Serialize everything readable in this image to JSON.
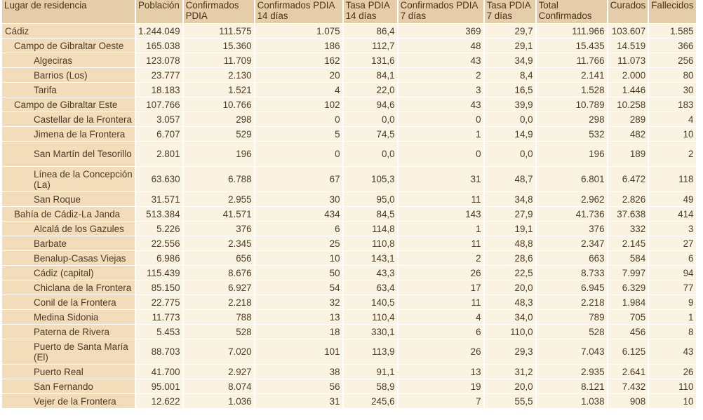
{
  "headers": [
    "Lugar de residencia",
    "Población",
    "Confirmados PDIA",
    "Confirmados PDIA 14 días",
    "Tasa PDIA 14 días",
    "Confirmados PDIA 7 días",
    "Tasa PDIA 7 días",
    "Total Confirmados",
    "Curados",
    "Fallecidos"
  ],
  "rows": [
    {
      "level": 0,
      "cells": [
        "Cádiz",
        "1.244.049",
        "111.575",
        "1.075",
        "86,4",
        "369",
        "29,7",
        "111.966",
        "103.607",
        "1.585"
      ]
    },
    {
      "level": 1,
      "cells": [
        "Campo de Gibraltar Oeste",
        "165.038",
        "15.360",
        "186",
        "112,7",
        "48",
        "29,1",
        "15.435",
        "14.519",
        "366"
      ]
    },
    {
      "level": 2,
      "cells": [
        "Algeciras",
        "123.078",
        "11.709",
        "162",
        "131,6",
        "43",
        "34,9",
        "11.766",
        "11.073",
        "256"
      ]
    },
    {
      "level": 2,
      "cells": [
        "Barrios (Los)",
        "23.777",
        "2.130",
        "20",
        "84,1",
        "2",
        "8,4",
        "2.141",
        "2.000",
        "80"
      ]
    },
    {
      "level": 2,
      "cells": [
        "Tarifa",
        "18.183",
        "1.521",
        "4",
        "22,0",
        "3",
        "16,5",
        "1.528",
        "1.446",
        "30"
      ]
    },
    {
      "level": 1,
      "cells": [
        "Campo de Gibraltar Este",
        "107.766",
        "10.766",
        "102",
        "94,6",
        "43",
        "39,9",
        "10.789",
        "10.258",
        "183"
      ]
    },
    {
      "level": 2,
      "cells": [
        "Castellar de la Frontera",
        "3.057",
        "298",
        "0",
        "0,0",
        "0",
        "0,0",
        "298",
        "289",
        "4"
      ]
    },
    {
      "level": 2,
      "cells": [
        "Jimena de la Frontera",
        "6.707",
        "529",
        "5",
        "74,5",
        "1",
        "14,9",
        "532",
        "482",
        "10"
      ]
    },
    {
      "level": 2,
      "tall": true,
      "cells": [
        "San Martín del Tesorillo",
        "2.801",
        "196",
        "0",
        "0,0",
        "0",
        "0,0",
        "196",
        "189",
        "2"
      ]
    },
    {
      "level": 2,
      "tall": true,
      "cells": [
        "Línea de la Concepción (La)",
        "63.630",
        "6.788",
        "67",
        "105,3",
        "31",
        "48,7",
        "6.801",
        "6.472",
        "118"
      ]
    },
    {
      "level": 2,
      "cells": [
        "San Roque",
        "31.571",
        "2.955",
        "30",
        "95,0",
        "11",
        "34,8",
        "2.962",
        "2.826",
        "49"
      ]
    },
    {
      "level": 1,
      "cells": [
        "Bahía de Cádiz-La Janda",
        "513.384",
        "41.571",
        "434",
        "84,5",
        "143",
        "27,9",
        "41.736",
        "37.638",
        "414"
      ]
    },
    {
      "level": 2,
      "cells": [
        "Alcalá de los Gazules",
        "5.226",
        "376",
        "6",
        "114,8",
        "1",
        "19,1",
        "376",
        "332",
        "3"
      ]
    },
    {
      "level": 2,
      "cells": [
        "Barbate",
        "22.556",
        "2.345",
        "25",
        "110,8",
        "11",
        "48,8",
        "2.347",
        "2.145",
        "27"
      ]
    },
    {
      "level": 2,
      "cells": [
        "Benalup-Casas Viejas",
        "6.986",
        "656",
        "10",
        "143,1",
        "2",
        "28,6",
        "663",
        "584",
        "6"
      ]
    },
    {
      "level": 2,
      "cells": [
        "Cádiz (capital)",
        "115.439",
        "8.676",
        "50",
        "43,3",
        "26",
        "22,5",
        "8.733",
        "7.997",
        "94"
      ]
    },
    {
      "level": 2,
      "cells": [
        "Chiclana de la Frontera",
        "85.150",
        "6.927",
        "54",
        "63,4",
        "17",
        "20,0",
        "6.945",
        "6.329",
        "77"
      ]
    },
    {
      "level": 2,
      "cells": [
        "Conil de la Frontera",
        "22.775",
        "2.218",
        "32",
        "140,5",
        "11",
        "48,3",
        "2.218",
        "1.984",
        "9"
      ]
    },
    {
      "level": 2,
      "cells": [
        "Medina Sidonia",
        "11.773",
        "788",
        "13",
        "110,4",
        "4",
        "34,0",
        "789",
        "705",
        "1"
      ]
    },
    {
      "level": 2,
      "cells": [
        "Paterna de Rivera",
        "5.453",
        "528",
        "18",
        "330,1",
        "6",
        "110,0",
        "528",
        "456",
        "8"
      ]
    },
    {
      "level": 2,
      "tall": true,
      "cells": [
        "Puerto de Santa María (El)",
        "88.703",
        "7.020",
        "101",
        "113,9",
        "26",
        "29,3",
        "7.043",
        "6.125",
        "43"
      ]
    },
    {
      "level": 2,
      "cells": [
        "Puerto Real",
        "41.700",
        "2.927",
        "38",
        "91,1",
        "13",
        "31,2",
        "2.935",
        "2.641",
        "26"
      ]
    },
    {
      "level": 2,
      "cells": [
        "San Fernando",
        "95.001",
        "8.074",
        "56",
        "58,9",
        "19",
        "20,0",
        "8.121",
        "7.432",
        "110"
      ]
    },
    {
      "level": 2,
      "cells": [
        "Vejer de la Frontera",
        "12.622",
        "1.036",
        "31",
        "245,6",
        "7",
        "55,5",
        "1.038",
        "908",
        "10"
      ]
    }
  ]
}
